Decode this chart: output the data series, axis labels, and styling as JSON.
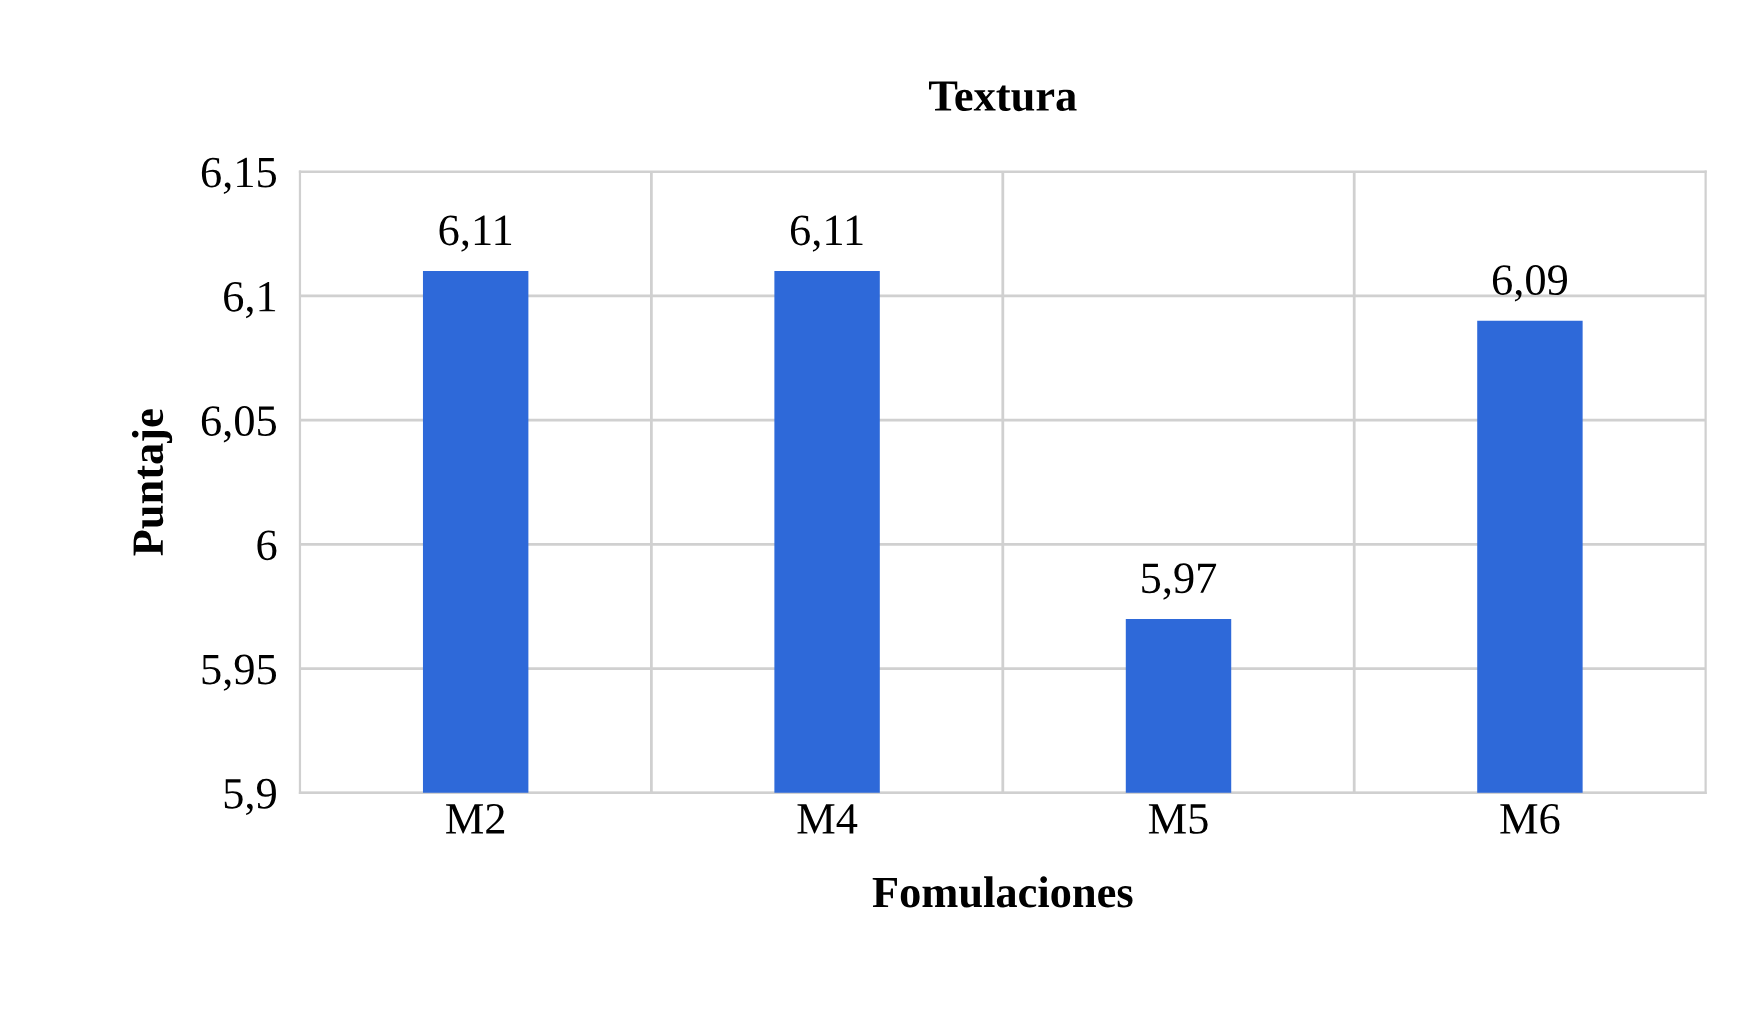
{
  "chart_data": {
    "type": "bar",
    "title": "Textura",
    "xlabel": "Fomulaciones",
    "ylabel": "Puntaje",
    "categories": [
      "M2",
      "M4",
      "M5",
      "M6"
    ],
    "values": [
      6.11,
      6.11,
      5.97,
      6.09
    ],
    "value_labels": [
      "6,11",
      "6,11",
      "5,97",
      "6,09"
    ],
    "color": "#2e69d9",
    "ylim": [
      5.9,
      6.15
    ],
    "yticks": [
      {
        "value": 5.9,
        "label": "5,9"
      },
      {
        "value": 5.95,
        "label": "5,95"
      },
      {
        "value": 6,
        "label": "6"
      },
      {
        "value": 6.05,
        "label": "6,05"
      },
      {
        "value": 6.1,
        "label": "6,1"
      },
      {
        "value": 6.15,
        "label": "6,15"
      }
    ],
    "grid": true,
    "legend": false
  }
}
